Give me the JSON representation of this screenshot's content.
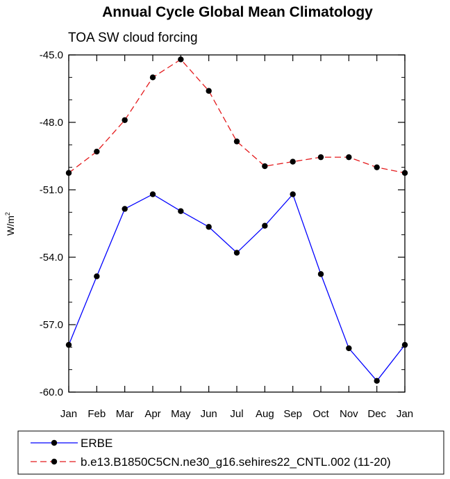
{
  "chart_data": {
    "type": "line",
    "title": "Annual Cycle Global Mean Climatology",
    "subtitle": "TOA SW cloud forcing",
    "ylabel": "W/m",
    "ylabel_sup": "2",
    "xlabel": "",
    "categories": [
      "Jan",
      "Feb",
      "Mar",
      "Apr",
      "May",
      "Jun",
      "Jul",
      "Aug",
      "Sep",
      "Oct",
      "Nov",
      "Dec",
      "Jan"
    ],
    "ylim": [
      -60.0,
      -45.0
    ],
    "yticks": [
      -60.0,
      -57.0,
      -54.0,
      -51.0,
      -48.0,
      -45.0
    ],
    "ytick_labels": [
      "-60.0",
      "-57.0",
      "-54.0",
      "-51.0",
      "-48.0",
      "-45.0"
    ],
    "series": [
      {
        "name": "ERBE",
        "color": "#0000ff",
        "dash": "solid",
        "values": [
          -57.9,
          -54.85,
          -51.85,
          -51.2,
          -51.95,
          -52.65,
          -53.8,
          -52.6,
          -51.2,
          -54.75,
          -58.05,
          -59.5,
          -57.9
        ]
      },
      {
        "name": "b.e13.B1850C5CN.ne30_g16.sehires22_CNTL.002 (11-20)",
        "color": "#e41a1c",
        "dash": "dashed",
        "values": [
          -50.25,
          -49.3,
          -47.9,
          -46.0,
          -45.2,
          -46.6,
          -48.85,
          -49.95,
          -49.75,
          -49.55,
          -49.55,
          -50.0,
          -50.25
        ]
      }
    ]
  }
}
